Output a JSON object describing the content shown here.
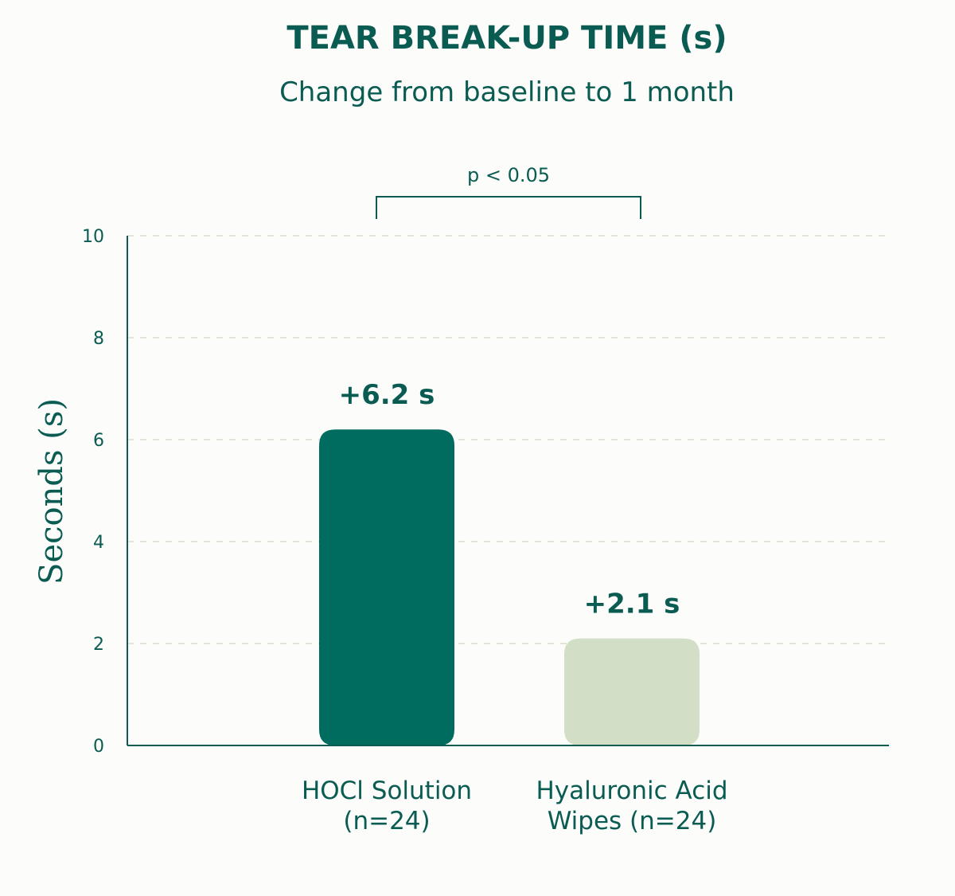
{
  "chart_data": {
    "type": "bar",
    "title": "TEAR BREAK-UP TIME (s)",
    "subtitle": "Change from baseline to 1 month",
    "ylabel": "Seconds (s)",
    "ylim": [
      0,
      10
    ],
    "yticks": [
      0,
      2,
      4,
      6,
      8,
      10
    ],
    "grid": true,
    "categories": [
      {
        "line1": "HOCl Solution",
        "line2": "(n=24)"
      },
      {
        "line1": "Hyaluronic Acid",
        "line2": "Wipes (n=24)"
      }
    ],
    "values": [
      6.2,
      2.1
    ],
    "data_labels": [
      "+6.2 s",
      "+2.1 s"
    ],
    "colors": [
      "#006b5f",
      "#d2dec6"
    ],
    "significance": {
      "label": "p < 0.05",
      "between": [
        0,
        1
      ]
    }
  }
}
